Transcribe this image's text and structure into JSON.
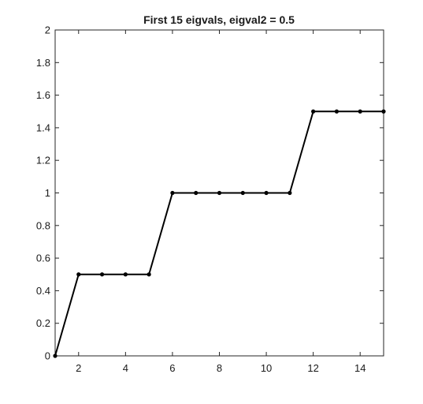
{
  "chart_data": {
    "type": "line",
    "title": "First 15 eigvals, eigval2 = 0.5",
    "xlabel": "",
    "ylabel": "",
    "xlim": [
      1,
      15
    ],
    "ylim": [
      0,
      2
    ],
    "xticks": [
      2,
      4,
      6,
      8,
      10,
      12,
      14
    ],
    "yticks": [
      0,
      0.2,
      0.4,
      0.6,
      0.8,
      1,
      1.2,
      1.4,
      1.6,
      1.8,
      2
    ],
    "xtick_labels": [
      "2",
      "4",
      "6",
      "8",
      "10",
      "12",
      "14"
    ],
    "ytick_labels": [
      "0",
      "0.2",
      "0.4",
      "0.6",
      "0.8",
      "1",
      "1.2",
      "1.4",
      "1.6",
      "1.8",
      "2"
    ],
    "grid": false,
    "legend": "none",
    "series": [
      {
        "x": [
          1,
          2,
          3,
          4,
          5,
          6,
          7,
          8,
          9,
          10,
          11,
          12,
          13,
          14,
          15
        ],
        "values": [
          0,
          0.5,
          0.5,
          0.5,
          0.5,
          1,
          1,
          1,
          1,
          1,
          1,
          1.5,
          1.5,
          1.5,
          1.5
        ],
        "color": "#000000",
        "marker": "dot"
      }
    ]
  }
}
